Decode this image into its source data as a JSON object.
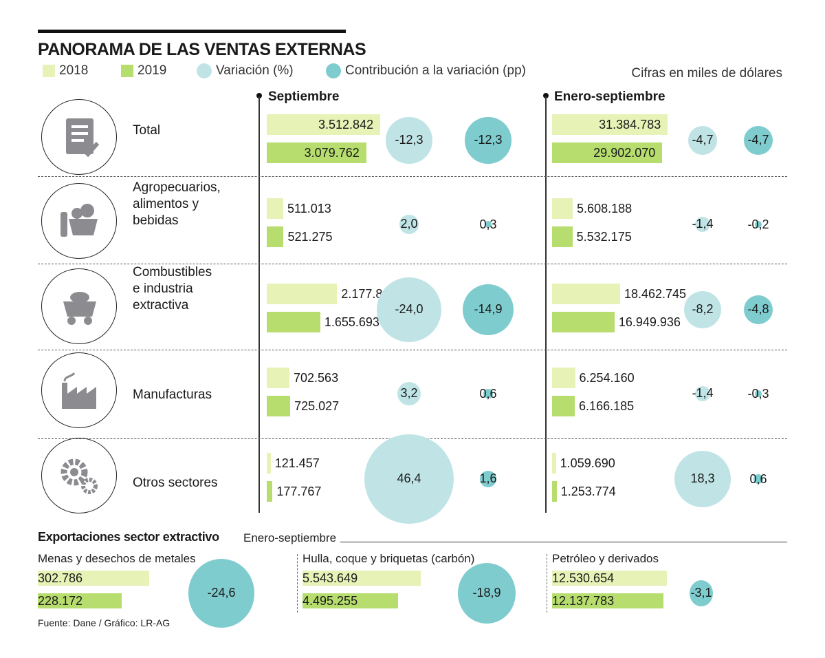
{
  "title": "PANORAMA DE LAS VENTAS EXTERNAS",
  "legend": [
    "2018",
    "2019",
    "Variación (%)",
    "Contribución a la variación (pp)"
  ],
  "note": "Cifras en miles de dólares",
  "colors": {
    "y2018": "#e6f2b6",
    "y2019": "#b6dd6e",
    "variation": "#c0e4e6",
    "contribution": "#7fcccf"
  },
  "columns": [
    "Septiembre",
    "Enero-septiembre"
  ],
  "chart_data": {
    "type": "bar",
    "categories": [
      "Total",
      "Agropecuarios, alimentos y bebidas",
      "Combustibles e industria extractiva",
      "Manufacturas",
      "Otros sectores"
    ],
    "septiembre": {
      "y2018": [
        "3.512.842",
        "511.013",
        "2.177.809",
        "702.563",
        "121.457"
      ],
      "y2019": [
        "3.079.762",
        "521.275",
        "1.655.693",
        "725.027",
        "177.767"
      ],
      "variation": [
        "-12,3",
        "2,0",
        "-24,0",
        "3,2",
        "46,4"
      ],
      "contribution": [
        "-12,3",
        "0,3",
        "-14,9",
        "0,6",
        "1,6"
      ]
    },
    "enero_septiembre": {
      "y2018": [
        "31.384.783",
        "5.608.188",
        "18.462.745",
        "6.254.160",
        "1.059.690"
      ],
      "y2019": [
        "29.902.070",
        "5.532.175",
        "16.949.936",
        "6.166.185",
        "1.253.774"
      ],
      "variation": [
        "-4,7",
        "-1,4",
        "-8,2",
        "-1,4",
        "18,3"
      ],
      "contribution": [
        "-4,7",
        "-0,2",
        "-4,8",
        "-0,3",
        "0,6"
      ]
    }
  },
  "rows": [
    {
      "label": "Total",
      "icon": "checklist-icon"
    },
    {
      "label": "Agropecuarios,\nalimentos y\nbebidas",
      "icon": "food-basket-icon"
    },
    {
      "label": "Combustibles\ne industria\nextractiva",
      "icon": "mine-cart-icon"
    },
    {
      "label": "Manufacturas",
      "icon": "factory-icon"
    },
    {
      "label": "Otros sectores",
      "icon": "gears-icon"
    }
  ],
  "extractive": {
    "title": "Exportaciones sector extractivo",
    "period": "Enero-septiembre",
    "items": [
      {
        "name": "Menas y desechos de metales",
        "y2018": "302.786",
        "y2019": "228.172",
        "contribution": "-24,6"
      },
      {
        "name": "Hulla, coque y briquetas (carbón)",
        "y2018": "5.543.649",
        "y2019": "4.495.255",
        "contribution": "-18,9"
      },
      {
        "name": "Petróleo y derivados",
        "y2018": "12.530.654",
        "y2019": "12.137.783",
        "contribution": "-3,1"
      }
    ]
  },
  "source": "Fuente: Dane / Gráfico: LR-AG"
}
